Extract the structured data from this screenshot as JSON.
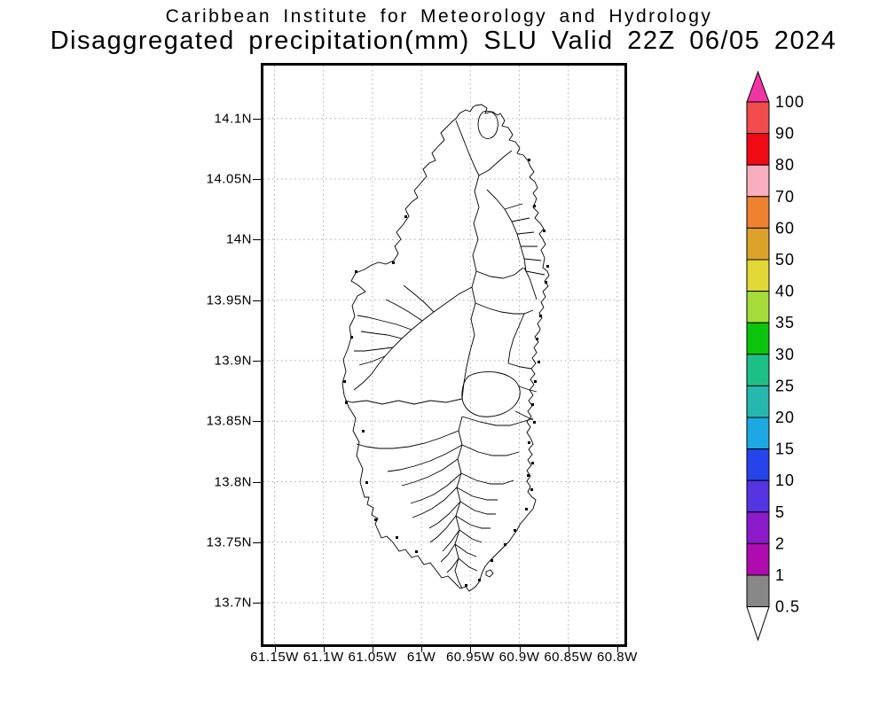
{
  "title": {
    "line1": "Caribbean Institute for Meteorology and Hydrology",
    "line2": "Disaggregated precipitation(mm) SLU Valid 22Z 06/05 2024"
  },
  "map": {
    "island_name": "saint-lucia-watershed-map",
    "y_axis_labels": [
      "14.1N",
      "14.05N",
      "14N",
      "13.95N",
      "13.9N",
      "13.85N",
      "13.8N",
      "13.75N",
      "13.7N"
    ],
    "x_axis_labels": [
      "61.15W",
      "61.1W",
      "61.05W",
      "61W",
      "60.95W",
      "60.9W",
      "60.85W",
      "60.8W"
    ],
    "grid_color": "#aaaaaa",
    "border_color": "#000000",
    "outline_color": "#000000"
  },
  "colorbar": {
    "labels": [
      "100",
      "90",
      "80",
      "70",
      "60",
      "50",
      "40",
      "35",
      "30",
      "25",
      "20",
      "15",
      "10",
      "5",
      "2",
      "1",
      "0.5"
    ],
    "cell_colors_top_to_bottom": [
      "#F04C4C",
      "#F00A14",
      "#F8AEBE",
      "#EE8230",
      "#DCA22A",
      "#E2D836",
      "#A6DC3A",
      "#0CC40C",
      "#1CC086",
      "#26B8AE",
      "#1EA8E2",
      "#2644EA",
      "#5534E2",
      "#8A1ACA",
      "#AE0CAE",
      "#878787"
    ],
    "over_arrow_color": "#F035A5",
    "under_arrow_color": "#FFFFFF"
  },
  "chart_data": {
    "type": "map",
    "title": "Disaggregated precipitation(mm) SLU Valid 22Z 06/05 2024",
    "subtitle": "Caribbean Institute for Meteorology and Hydrology",
    "region": "Saint Lucia",
    "lon_ticks": [
      "61.15W",
      "61.1W",
      "61.05W",
      "61W",
      "60.95W",
      "60.9W",
      "60.85W",
      "60.8W"
    ],
    "lat_ticks": [
      "14.1N",
      "14.05N",
      "14N",
      "13.95N",
      "13.9N",
      "13.85N",
      "13.8N",
      "13.75N",
      "13.7N"
    ],
    "precip_scale_boundaries_mm": [
      0.5,
      1,
      2,
      5,
      10,
      15,
      20,
      25,
      30,
      35,
      40,
      50,
      60,
      70,
      80,
      90,
      100
    ],
    "shaded_precip_on_map": "none (no shaded values shown)"
  }
}
